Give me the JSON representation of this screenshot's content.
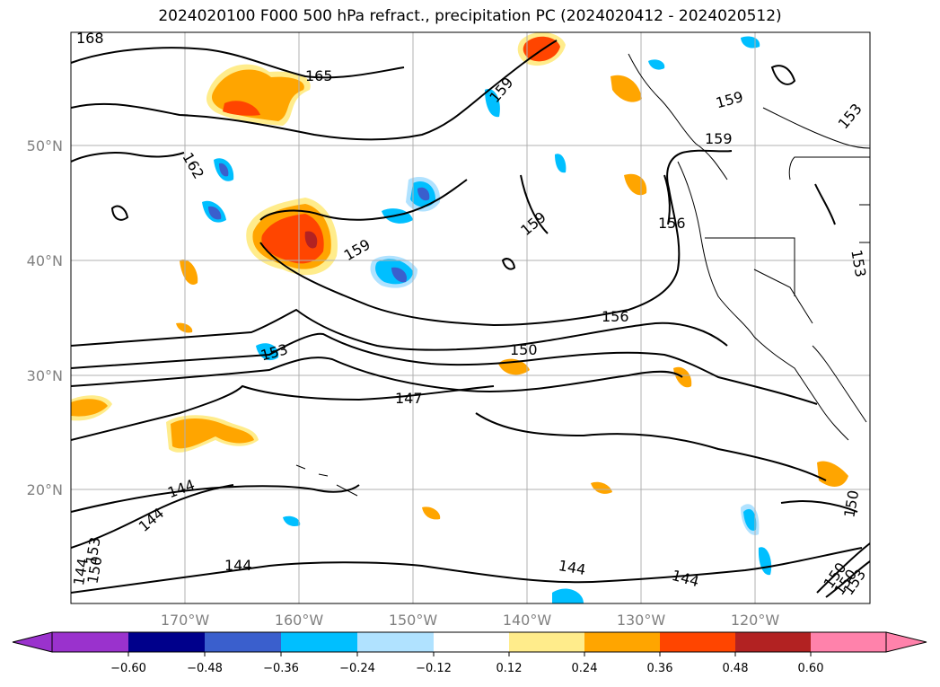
{
  "title": "2024020100 F000 500 hPa refract., precipitation PC (2024020412 - 2024020512)",
  "lat_labels": [
    "50°N",
    "40°N",
    "30°N",
    "20°N"
  ],
  "lon_labels": [
    "170°W",
    "160°W",
    "150°W",
    "140°W",
    "130°W",
    "120°W"
  ],
  "colorbar": {
    "ticks": [
      "−0.60",
      "−0.48",
      "−0.36",
      "−0.24",
      "−0.12",
      "0.12",
      "0.24",
      "0.36",
      "0.48",
      "0.60"
    ],
    "colors": [
      "#9a32cd",
      "#00008b",
      "#3a5fcd",
      "#00bfff",
      "#b0e2ff",
      "#ffffff",
      "#ffec8b",
      "#ffa500",
      "#ff4500",
      "#b22222",
      "#ff82ab"
    ]
  },
  "contour_labels": [
    "168",
    "165",
    "162",
    "159",
    "159",
    "159",
    "159",
    "159",
    "156",
    "156",
    "153",
    "153",
    "153",
    "150",
    "150",
    "147",
    "144",
    "144",
    "144",
    "144",
    "144",
    "144",
    "150",
    "150",
    "153",
    "150",
    "153"
  ]
}
